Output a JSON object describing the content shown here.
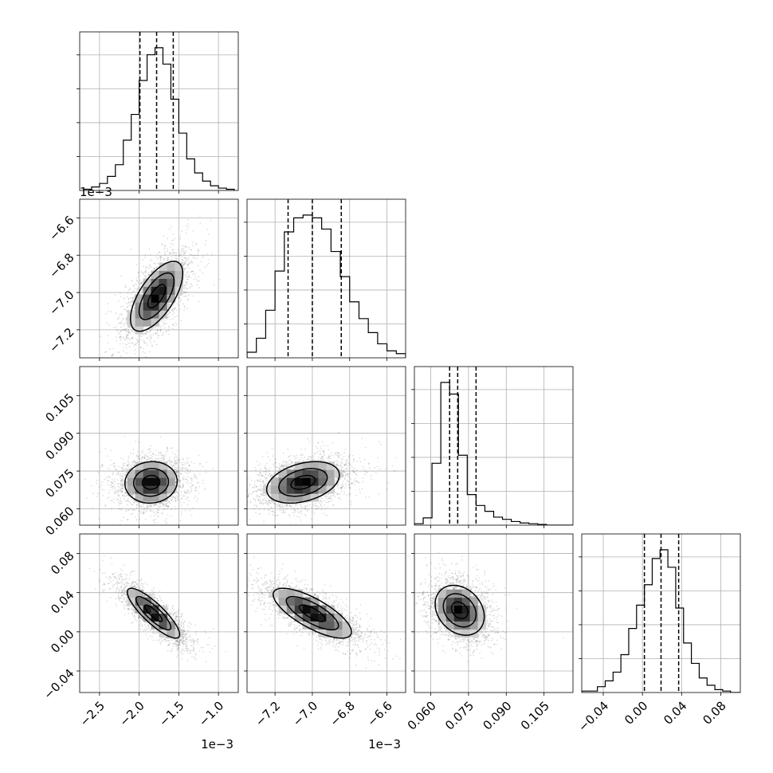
{
  "chart_data": {
    "type": "corner",
    "parameters": [
      {
        "name": "",
        "range": [
          -2.75,
          -0.75
        ],
        "ticks": [
          -2.5,
          -2.0,
          -1.5,
          -1.0
        ],
        "tick_labels": [
          "−2.5",
          "−2.0",
          "−1.5",
          "−1.0"
        ],
        "offset_label": "1e−3"
      },
      {
        "name": "",
        "range": [
          -7.35,
          -6.5
        ],
        "ticks": [
          -7.2,
          -7.0,
          -6.8,
          -6.6
        ],
        "tick_labels": [
          "−7.2",
          "−7.0",
          "−6.8",
          "−6.6"
        ],
        "offset_label": "1e−3"
      },
      {
        "name": "",
        "range": [
          0.0535,
          0.1165
        ],
        "ticks": [
          0.06,
          0.075,
          0.09,
          0.105
        ],
        "tick_labels": [
          "0.060",
          "0.075",
          "0.090",
          "0.105"
        ],
        "offset_label": ""
      },
      {
        "name": "",
        "range": [
          -0.062,
          0.1
        ],
        "ticks": [
          -0.04,
          0.0,
          0.04,
          0.08
        ],
        "tick_labels": [
          "−0.04",
          "0.00",
          "0.04",
          "0.08"
        ],
        "offset_label": ""
      }
    ],
    "histograms": [
      {
        "param": 0,
        "bin_edges": [
          -2.7,
          -2.6,
          -2.5,
          -2.4,
          -2.3,
          -2.2,
          -2.1,
          -2.0,
          -1.9,
          -1.8,
          -1.7,
          -1.6,
          -1.5,
          -1.4,
          -1.3,
          -1.2,
          -1.1,
          -1.0,
          -0.9,
          -0.8
        ],
        "counts": [
          1,
          3,
          6,
          12,
          22,
          43,
          65,
          94,
          116,
          122,
          108,
          78,
          49,
          27,
          15,
          8,
          4,
          2,
          1
        ],
        "quantiles": [
          -1.99,
          -1.78,
          -1.57
        ]
      },
      {
        "param": 1,
        "bin_edges": [
          -7.35,
          -7.3,
          -7.25,
          -7.2,
          -7.15,
          -7.1,
          -7.05,
          -7.0,
          -6.95,
          -6.9,
          -6.85,
          -6.8,
          -6.75,
          -6.7,
          -6.65,
          -6.6,
          -6.55,
          -6.5
        ],
        "counts": [
          4,
          14,
          34,
          62,
          90,
          100,
          102,
          100,
          92,
          76,
          58,
          40,
          28,
          18,
          10,
          5,
          3
        ],
        "quantiles": [
          -7.13,
          -7.0,
          -6.845
        ]
      },
      {
        "param": 2,
        "bin_edges": [
          0.0535,
          0.057,
          0.0605,
          0.064,
          0.0675,
          0.071,
          0.0745,
          0.078,
          0.0815,
          0.085,
          0.0885,
          0.092,
          0.0955,
          0.099,
          0.1025,
          0.106,
          0.1095,
          0.113,
          0.1165
        ],
        "counts": [
          2,
          10,
          85,
          196,
          180,
          96,
          42,
          27,
          19,
          11,
          8,
          5,
          3,
          2,
          1,
          0,
          0,
          0
        ],
        "quantiles": [
          0.0675,
          0.0707,
          0.078
        ]
      },
      {
        "param": 3,
        "bin_edges": [
          -0.062,
          -0.054,
          -0.046,
          -0.038,
          -0.03,
          -0.022,
          -0.014,
          -0.006,
          0.002,
          0.01,
          0.018,
          0.026,
          0.034,
          0.042,
          0.05,
          0.058,
          0.066,
          0.074,
          0.082,
          0.09,
          0.1
        ],
        "counts": [
          1,
          1,
          4,
          8,
          14,
          26,
          44,
          60,
          74,
          92,
          98,
          86,
          58,
          34,
          20,
          10,
          5,
          2,
          1,
          0
        ],
        "quantiles": [
          0.002,
          0.019,
          0.037
        ]
      }
    ],
    "pairs": [
      {
        "x_param": 0,
        "y_param": 1,
        "mean": [
          -1.78,
          -7.02
        ],
        "sd": [
          0.22,
          0.125
        ],
        "corr": 0.65
      },
      {
        "x_param": 0,
        "y_param": 2,
        "mean": [
          -1.85,
          0.0705
        ],
        "sd": [
          0.22,
          0.0055
        ],
        "corr": 0.05
      },
      {
        "x_param": 1,
        "y_param": 2,
        "mean": [
          -7.05,
          0.0705
        ],
        "sd": [
          0.13,
          0.0055
        ],
        "corr": 0.35
      },
      {
        "x_param": 0,
        "y_param": 3,
        "mean": [
          -1.82,
          0.019
        ],
        "sd": [
          0.22,
          0.017
        ],
        "corr": -0.85
      },
      {
        "x_param": 1,
        "y_param": 3,
        "mean": [
          -7.0,
          0.019
        ],
        "sd": [
          0.14,
          0.017
        ],
        "corr": -0.75
      },
      {
        "x_param": 2,
        "y_param": 3,
        "mean": [
          0.0715,
          0.022
        ],
        "sd": [
          0.0065,
          0.017
        ],
        "corr": -0.25
      }
    ],
    "sigma_levels": [
      0.5,
      1.0,
      1.5
    ],
    "grid": true,
    "legend": "none"
  }
}
